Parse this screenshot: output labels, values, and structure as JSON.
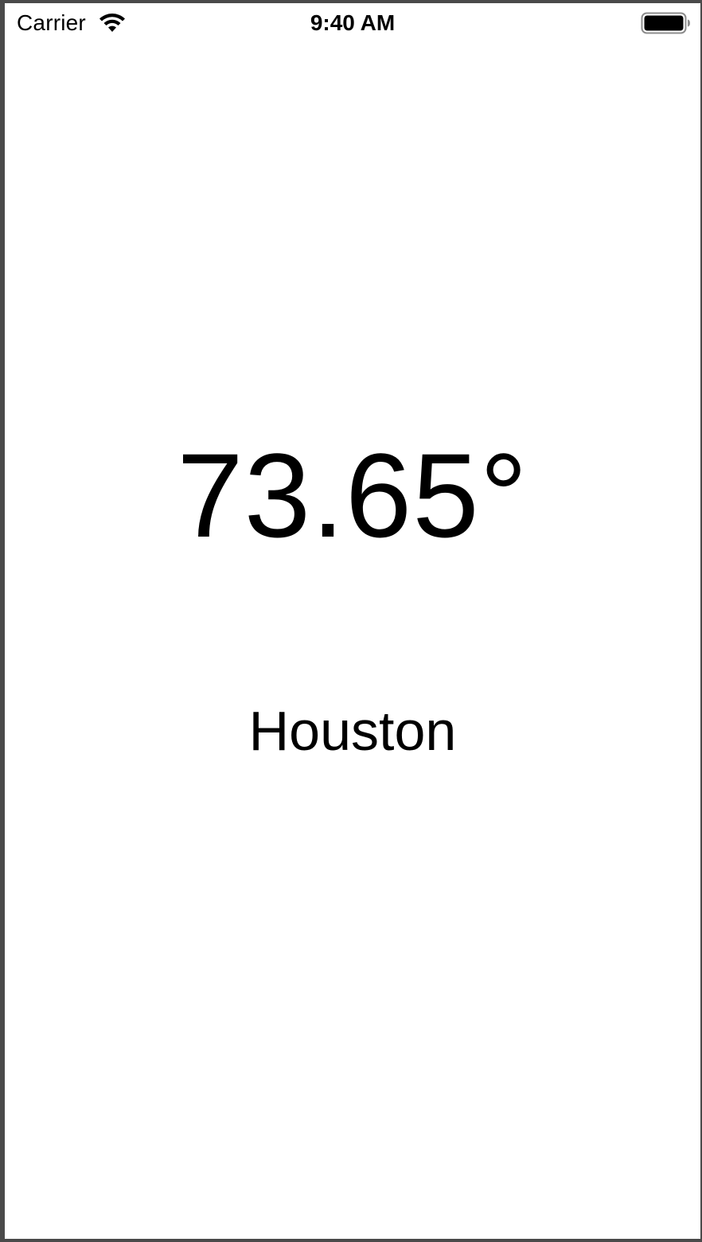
{
  "status_bar": {
    "carrier": "Carrier",
    "time": "9:40 AM",
    "wifi_icon": "wifi-icon",
    "battery_icon": "battery-icon"
  },
  "weather": {
    "temperature": "73.65°",
    "city": "Houston"
  },
  "colors": {
    "background": "#ffffff",
    "text": "#000000",
    "frame": "#4a4a4a"
  }
}
